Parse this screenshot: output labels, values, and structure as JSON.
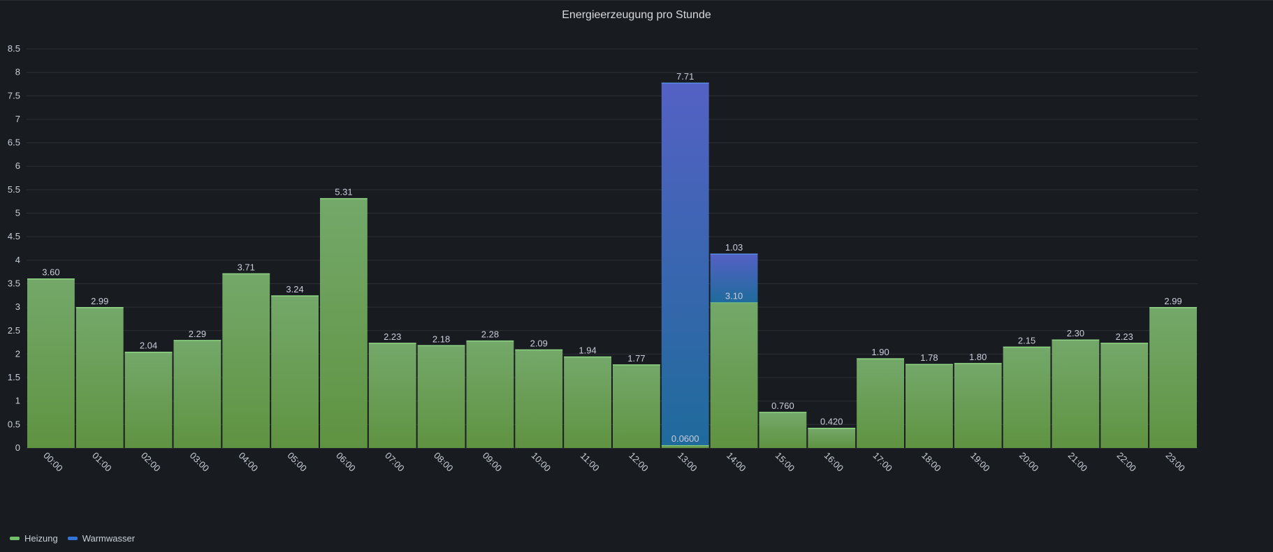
{
  "panel": {
    "title": "Energieerzeugung pro Stunde"
  },
  "legend": {
    "items": [
      {
        "label": "Heizung",
        "color": "#73bf69"
      },
      {
        "label": "Warmwasser",
        "color": "#3274d9"
      }
    ]
  },
  "chart_data": {
    "type": "bar",
    "stacked": true,
    "title": "Energieerzeugung pro Stunde",
    "xlabel": "",
    "ylabel": "",
    "ylim": [
      0,
      8.5
    ],
    "yticks": [
      "0",
      "0.5",
      "1",
      "1.5",
      "2",
      "2.5",
      "3",
      "3.5",
      "4",
      "4.5",
      "5",
      "5.5",
      "6",
      "6.5",
      "7",
      "7.5",
      "8",
      "8.5"
    ],
    "grid": true,
    "legend_position": "bottom-left",
    "categories": [
      "00:00",
      "01:00",
      "02:00",
      "03:00",
      "04:00",
      "05:00",
      "06:00",
      "07:00",
      "08:00",
      "09:00",
      "10:00",
      "11:00",
      "12:00",
      "13:00",
      "14:00",
      "15:00",
      "16:00",
      "17:00",
      "18:00",
      "19:00",
      "20:00",
      "21:00",
      "22:00",
      "23:00"
    ],
    "series": [
      {
        "name": "Heizung",
        "color": "#73bf69",
        "values": [
          3.6,
          2.99,
          2.04,
          2.29,
          3.71,
          3.24,
          5.31,
          2.23,
          2.18,
          2.28,
          2.09,
          1.94,
          1.77,
          0.06,
          3.1,
          0.76,
          0.42,
          1.9,
          1.78,
          1.8,
          2.15,
          2.3,
          2.23,
          2.99
        ],
        "labels": [
          "3.60",
          "2.99",
          "2.04",
          "2.29",
          "3.71",
          "3.24",
          "5.31",
          "2.23",
          "2.18",
          "2.28",
          "2.09",
          "1.94",
          "1.77",
          "0.0600",
          "3.10",
          "0.760",
          "0.420",
          "1.90",
          "1.78",
          "1.80",
          "2.15",
          "2.30",
          "2.23",
          "2.99"
        ]
      },
      {
        "name": "Warmwasser",
        "color": "#3274d9",
        "values": [
          null,
          null,
          null,
          null,
          null,
          null,
          null,
          null,
          null,
          null,
          null,
          null,
          null,
          7.71,
          1.03,
          null,
          null,
          null,
          null,
          null,
          null,
          null,
          null,
          null
        ],
        "labels": [
          "",
          "",
          "",
          "",
          "",
          "",
          "",
          "",
          "",
          "",
          "",
          "",
          "",
          "7.71",
          "1.03",
          "",
          "",
          "",
          "",
          "",
          "",
          "",
          "",
          ""
        ]
      }
    ]
  }
}
